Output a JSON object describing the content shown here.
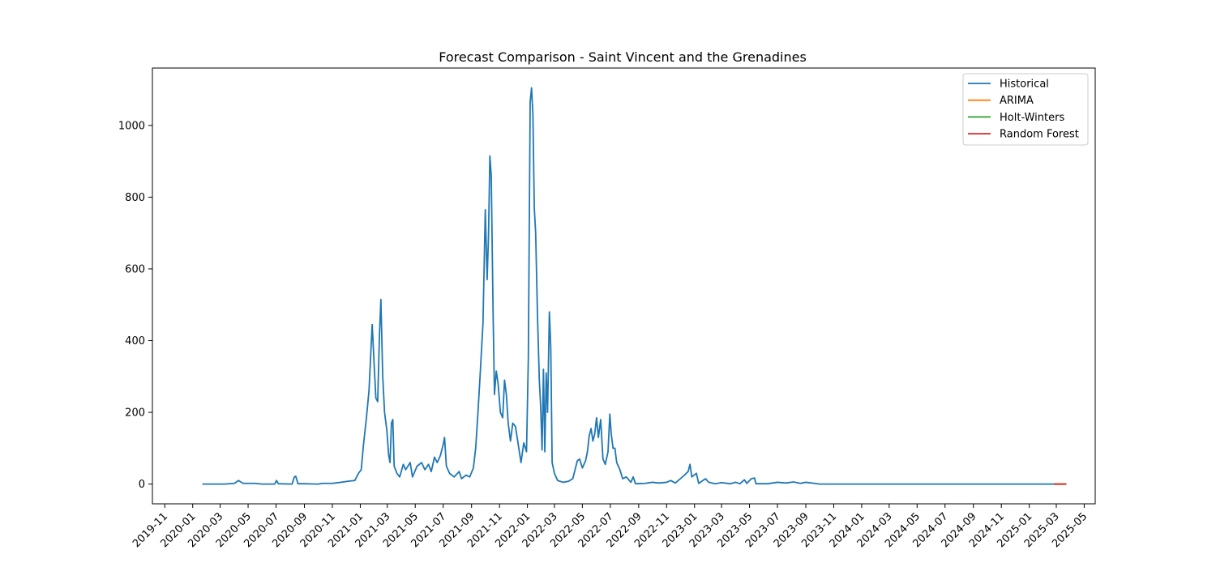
{
  "chart_data": {
    "type": "line",
    "title": "Forecast Comparison - Saint Vincent and the Grenadines",
    "xlabel": "",
    "ylabel": "",
    "x_range": [
      "2019-10-05",
      "2025-05-25"
    ],
    "ylim": [
      -55,
      1160
    ],
    "y_ticks": [
      0,
      200,
      400,
      600,
      800,
      1000
    ],
    "x_ticks": [
      "2019-11",
      "2020-01",
      "2020-03",
      "2020-05",
      "2020-07",
      "2020-09",
      "2020-11",
      "2021-01",
      "2021-03",
      "2021-05",
      "2021-07",
      "2021-09",
      "2021-11",
      "2022-01",
      "2022-03",
      "2022-05",
      "2022-07",
      "2022-09",
      "2022-11",
      "2023-01",
      "2023-03",
      "2023-05",
      "2023-07",
      "2023-09",
      "2023-11",
      "2024-01",
      "2024-03",
      "2024-05",
      "2024-07",
      "2024-09",
      "2024-11",
      "2025-01",
      "2025-03",
      "2025-05"
    ],
    "legend_position": "top-right",
    "grid": false,
    "series": [
      {
        "name": "Historical",
        "color": "#1f77b4",
        "points": [
          [
            "2020-01-22",
            0
          ],
          [
            "2020-03-10",
            0
          ],
          [
            "2020-04-01",
            2
          ],
          [
            "2020-04-10",
            10
          ],
          [
            "2020-04-20",
            2
          ],
          [
            "2020-05-15",
            2
          ],
          [
            "2020-06-01",
            0
          ],
          [
            "2020-06-28",
            0
          ],
          [
            "2020-07-02",
            10
          ],
          [
            "2020-07-06",
            1
          ],
          [
            "2020-08-05",
            0
          ],
          [
            "2020-08-10",
            20
          ],
          [
            "2020-08-13",
            22
          ],
          [
            "2020-08-18",
            1
          ],
          [
            "2020-09-01",
            1
          ],
          [
            "2020-10-01",
            0
          ],
          [
            "2020-10-10",
            2
          ],
          [
            "2020-11-01",
            2
          ],
          [
            "2020-11-20",
            5
          ],
          [
            "2020-12-05",
            8
          ],
          [
            "2020-12-20",
            10
          ],
          [
            "2020-12-28",
            30
          ],
          [
            "2021-01-03",
            40
          ],
          [
            "2021-01-08",
            110
          ],
          [
            "2021-01-14",
            180
          ],
          [
            "2021-01-20",
            260
          ],
          [
            "2021-01-27",
            445
          ],
          [
            "2021-01-31",
            340
          ],
          [
            "2021-02-04",
            240
          ],
          [
            "2021-02-08",
            230
          ],
          [
            "2021-02-12",
            420
          ],
          [
            "2021-02-15",
            515
          ],
          [
            "2021-02-19",
            300
          ],
          [
            "2021-02-23",
            200
          ],
          [
            "2021-02-28",
            150
          ],
          [
            "2021-03-04",
            80
          ],
          [
            "2021-03-07",
            60
          ],
          [
            "2021-03-10",
            170
          ],
          [
            "2021-03-13",
            180
          ],
          [
            "2021-03-16",
            50
          ],
          [
            "2021-03-22",
            30
          ],
          [
            "2021-03-28",
            20
          ],
          [
            "2021-04-05",
            55
          ],
          [
            "2021-04-10",
            40
          ],
          [
            "2021-04-20",
            60
          ],
          [
            "2021-04-25",
            20
          ],
          [
            "2021-05-05",
            50
          ],
          [
            "2021-05-15",
            60
          ],
          [
            "2021-05-22",
            40
          ],
          [
            "2021-05-30",
            55
          ],
          [
            "2021-06-05",
            35
          ],
          [
            "2021-06-12",
            75
          ],
          [
            "2021-06-18",
            60
          ],
          [
            "2021-06-25",
            80
          ],
          [
            "2021-07-01",
            110
          ],
          [
            "2021-07-04",
            130
          ],
          [
            "2021-07-08",
            50
          ],
          [
            "2021-07-15",
            30
          ],
          [
            "2021-07-25",
            20
          ],
          [
            "2021-08-05",
            35
          ],
          [
            "2021-08-10",
            15
          ],
          [
            "2021-08-20",
            25
          ],
          [
            "2021-08-28",
            20
          ],
          [
            "2021-09-05",
            45
          ],
          [
            "2021-09-10",
            100
          ],
          [
            "2021-09-15",
            200
          ],
          [
            "2021-09-20",
            310
          ],
          [
            "2021-09-26",
            450
          ],
          [
            "2021-10-01",
            765
          ],
          [
            "2021-10-05",
            570
          ],
          [
            "2021-10-08",
            690
          ],
          [
            "2021-10-11",
            915
          ],
          [
            "2021-10-14",
            860
          ],
          [
            "2021-10-18",
            480
          ],
          [
            "2021-10-21",
            250
          ],
          [
            "2021-10-25",
            315
          ],
          [
            "2021-10-29",
            280
          ],
          [
            "2021-11-03",
            200
          ],
          [
            "2021-11-08",
            185
          ],
          [
            "2021-11-12",
            290
          ],
          [
            "2021-11-16",
            250
          ],
          [
            "2021-11-20",
            170
          ],
          [
            "2021-11-25",
            120
          ],
          [
            "2021-11-30",
            170
          ],
          [
            "2021-12-06",
            160
          ],
          [
            "2021-12-12",
            110
          ],
          [
            "2021-12-18",
            60
          ],
          [
            "2021-12-24",
            115
          ],
          [
            "2021-12-30",
            90
          ],
          [
            "2022-01-03",
            350
          ],
          [
            "2022-01-07",
            1065
          ],
          [
            "2022-01-10",
            1105
          ],
          [
            "2022-01-13",
            1030
          ],
          [
            "2022-01-16",
            770
          ],
          [
            "2022-01-19",
            700
          ],
          [
            "2022-01-23",
            470
          ],
          [
            "2022-01-27",
            290
          ],
          [
            "2022-01-30",
            215
          ],
          [
            "2022-02-02",
            95
          ],
          [
            "2022-02-05",
            320
          ],
          [
            "2022-02-08",
            90
          ],
          [
            "2022-02-11",
            310
          ],
          [
            "2022-02-14",
            200
          ],
          [
            "2022-02-18",
            480
          ],
          [
            "2022-02-21",
            380
          ],
          [
            "2022-02-24",
            60
          ],
          [
            "2022-03-01",
            30
          ],
          [
            "2022-03-08",
            10
          ],
          [
            "2022-03-20",
            5
          ],
          [
            "2022-04-01",
            8
          ],
          [
            "2022-04-10",
            15
          ],
          [
            "2022-04-15",
            40
          ],
          [
            "2022-04-20",
            65
          ],
          [
            "2022-04-25",
            70
          ],
          [
            "2022-05-01",
            45
          ],
          [
            "2022-05-08",
            65
          ],
          [
            "2022-05-12",
            90
          ],
          [
            "2022-05-16",
            135
          ],
          [
            "2022-05-20",
            155
          ],
          [
            "2022-05-24",
            120
          ],
          [
            "2022-05-28",
            140
          ],
          [
            "2022-06-01",
            185
          ],
          [
            "2022-06-05",
            130
          ],
          [
            "2022-06-10",
            180
          ],
          [
            "2022-06-15",
            70
          ],
          [
            "2022-06-20",
            55
          ],
          [
            "2022-06-26",
            90
          ],
          [
            "2022-06-30",
            195
          ],
          [
            "2022-07-03",
            140
          ],
          [
            "2022-07-07",
            100
          ],
          [
            "2022-07-11",
            100
          ],
          [
            "2022-07-15",
            60
          ],
          [
            "2022-07-22",
            40
          ],
          [
            "2022-07-28",
            15
          ],
          [
            "2022-08-05",
            20
          ],
          [
            "2022-08-15",
            5
          ],
          [
            "2022-08-20",
            20
          ],
          [
            "2022-08-25",
            1
          ],
          [
            "2022-09-15",
            2
          ],
          [
            "2022-10-01",
            5
          ],
          [
            "2022-10-15",
            3
          ],
          [
            "2022-11-01",
            5
          ],
          [
            "2022-11-10",
            10
          ],
          [
            "2022-11-20",
            3
          ],
          [
            "2022-12-01",
            15
          ],
          [
            "2022-12-10",
            25
          ],
          [
            "2022-12-18",
            35
          ],
          [
            "2022-12-22",
            55
          ],
          [
            "2022-12-26",
            20
          ],
          [
            "2023-01-05",
            30
          ],
          [
            "2023-01-10",
            2
          ],
          [
            "2023-01-25",
            15
          ],
          [
            "2023-02-01",
            5
          ],
          [
            "2023-02-15",
            1
          ],
          [
            "2023-03-01",
            4
          ],
          [
            "2023-03-20",
            1
          ],
          [
            "2023-04-01",
            5
          ],
          [
            "2023-04-10",
            1
          ],
          [
            "2023-04-20",
            12
          ],
          [
            "2023-04-25",
            2
          ],
          [
            "2023-05-05",
            15
          ],
          [
            "2023-05-12",
            17
          ],
          [
            "2023-05-15",
            1
          ],
          [
            "2023-06-10",
            1
          ],
          [
            "2023-07-01",
            5
          ],
          [
            "2023-07-20",
            3
          ],
          [
            "2023-08-05",
            6
          ],
          [
            "2023-08-20",
            2
          ],
          [
            "2023-09-01",
            5
          ],
          [
            "2023-09-20",
            2
          ],
          [
            "2023-10-01",
            0
          ],
          [
            "2025-02-24",
            0
          ]
        ]
      },
      {
        "name": "ARIMA",
        "color": "#ff7f0e",
        "points": [
          [
            "2025-02-24",
            0
          ],
          [
            "2025-03-23",
            0
          ]
        ]
      },
      {
        "name": "Holt-Winters",
        "color": "#2ca02c",
        "points": [
          [
            "2025-02-24",
            0
          ],
          [
            "2025-03-23",
            0
          ]
        ]
      },
      {
        "name": "Random Forest",
        "color": "#d62728",
        "points": [
          [
            "2025-02-24",
            0
          ],
          [
            "2025-03-23",
            0
          ]
        ]
      }
    ]
  }
}
